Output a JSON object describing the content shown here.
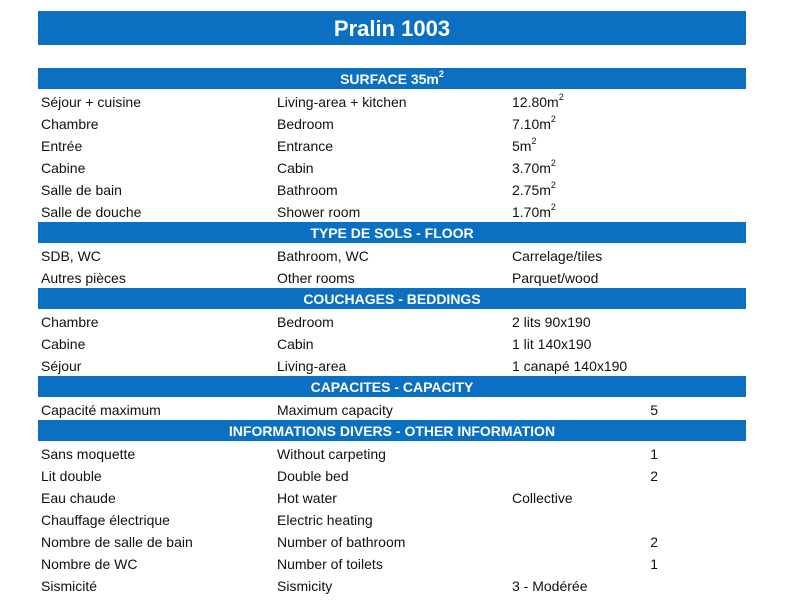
{
  "title": "Pralin 1003",
  "accent_color": "#0b6fc2",
  "sections": [
    {
      "header": "SURFACE 35m²",
      "rows": [
        {
          "fr": "Séjour + cuisine",
          "en": "Living-area + kitchen",
          "value": "12.80m²",
          "count": ""
        },
        {
          "fr": "Chambre",
          "en": "Bedroom",
          "value": "7.10m²",
          "count": ""
        },
        {
          "fr": "Entrée",
          "en": "Entrance",
          "value": "5m²",
          "count": ""
        },
        {
          "fr": "Cabine",
          "en": "Cabin",
          "value": "3.70m²",
          "count": ""
        },
        {
          "fr": "Salle de bain",
          "en": "Bathroom",
          "value": "2.75m²",
          "count": ""
        },
        {
          "fr": "Salle de douche",
          "en": "Shower room",
          "value": "1.70m²",
          "count": ""
        }
      ]
    },
    {
      "header": "TYPE DE SOLS - FLOOR",
      "rows": [
        {
          "fr": "SDB, WC",
          "en": "Bathroom, WC",
          "value": "Carrelage/tiles",
          "count": ""
        },
        {
          "fr": "Autres pièces",
          "en": "Other rooms",
          "value": "Parquet/wood",
          "count": ""
        }
      ]
    },
    {
      "header": "COUCHAGES - BEDDINGS",
      "rows": [
        {
          "fr": "Chambre",
          "en": "Bedroom",
          "value": "2 lits 90x190",
          "count": ""
        },
        {
          "fr": "Cabine",
          "en": "Cabin",
          "value": "1 lit 140x190",
          "count": ""
        },
        {
          "fr": "Séjour",
          "en": "Living-area",
          "value": "1 canapé 140x190",
          "count": ""
        }
      ]
    },
    {
      "header": "CAPACITES - CAPACITY",
      "rows": [
        {
          "fr": "Capacité maximum",
          "en": "Maximum capacity",
          "value": "",
          "count": "5"
        }
      ]
    },
    {
      "header": "INFORMATIONS DIVERS - OTHER INFORMATION",
      "rows": [
        {
          "fr": "Sans moquette",
          "en": "Without carpeting",
          "value": "",
          "count": "1"
        },
        {
          "fr": "Lit double",
          "en": "Double bed",
          "value": "",
          "count": "2"
        },
        {
          "fr": "Eau chaude",
          "en": "Hot water",
          "value": "Collective",
          "count": ""
        },
        {
          "fr": "Chauffage électrique",
          "en": "Electric heating",
          "value": "",
          "count": ""
        },
        {
          "fr": "Nombre de salle de bain",
          "en": "Number of bathroom",
          "value": "",
          "count": "2"
        },
        {
          "fr": "Nombre de WC",
          "en": "Number of toilets",
          "value": "",
          "count": "1"
        },
        {
          "fr": "Sismicité",
          "en": "Sismicity",
          "value": "3 - Modérée",
          "count": ""
        }
      ]
    }
  ]
}
